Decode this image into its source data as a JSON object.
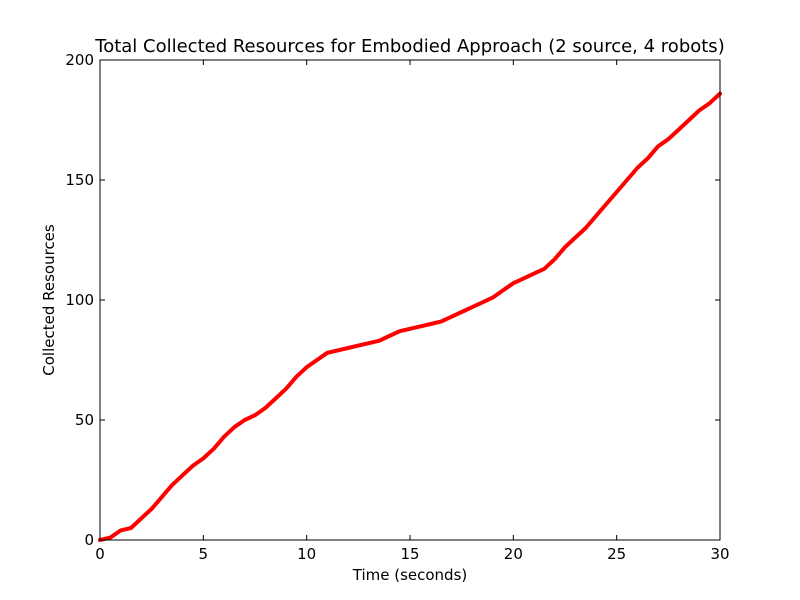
{
  "chart_data": {
    "type": "line",
    "title": "Total Collected Resources for Embodied Approach (2 source, 4 robots)",
    "xlabel": "Time (seconds)",
    "ylabel": "Collected Resources",
    "xlim": [
      0,
      30
    ],
    "ylim": [
      0,
      200
    ],
    "xticks": [
      0,
      5,
      10,
      15,
      20,
      25,
      30
    ],
    "yticks": [
      0,
      50,
      100,
      150,
      200
    ],
    "grid": false,
    "legend": "none",
    "series": [
      {
        "color": "#ff0000",
        "x": [
          0,
          0.5,
          1.0,
          1.5,
          2.0,
          2.5,
          3.0,
          3.5,
          4.0,
          4.5,
          5.0,
          5.5,
          6.0,
          6.5,
          7.0,
          7.5,
          8.0,
          8.5,
          9.0,
          9.5,
          10.0,
          10.5,
          11.0,
          11.5,
          12.0,
          12.5,
          13.0,
          13.5,
          14.0,
          14.5,
          15.0,
          15.5,
          16.0,
          16.5,
          17.0,
          17.5,
          18.0,
          18.5,
          19.0,
          19.5,
          20.0,
          20.5,
          21.0,
          21.5,
          22.0,
          22.5,
          23.0,
          23.5,
          24.0,
          24.5,
          25.0,
          25.5,
          26.0,
          26.5,
          27.0,
          27.5,
          28.0,
          28.5,
          29.0,
          29.5,
          30.0
        ],
        "y": [
          0,
          1,
          4,
          5,
          9,
          13,
          18,
          23,
          27,
          31,
          34,
          38,
          43,
          47,
          50,
          52,
          55,
          59,
          63,
          68,
          72,
          75,
          78,
          79,
          80,
          81,
          82,
          83,
          85,
          87,
          88,
          89,
          90,
          91,
          93,
          95,
          97,
          99,
          101,
          104,
          107,
          109,
          111,
          113,
          117,
          122,
          126,
          130,
          135,
          140,
          145,
          150,
          155,
          159,
          164,
          167,
          171,
          175,
          179,
          182,
          186
        ]
      }
    ]
  }
}
